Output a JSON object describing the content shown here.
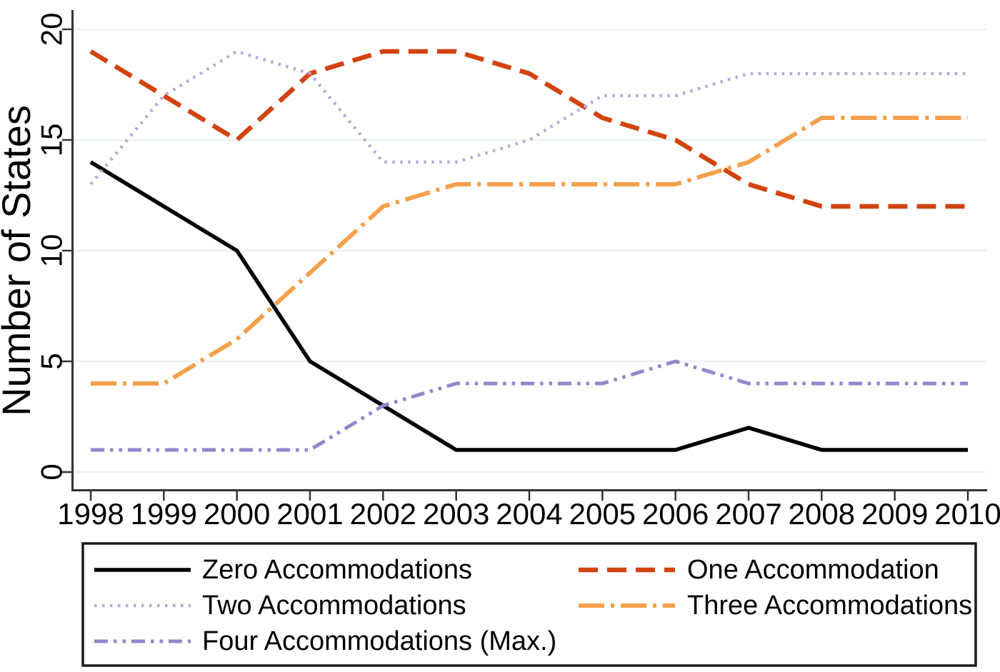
{
  "chart_data": {
    "type": "line",
    "title": "",
    "xlabel": "",
    "ylabel": "Number of States",
    "x_labels": [
      "1998",
      "1999",
      "2000",
      "2001",
      "2002",
      "2003",
      "2004",
      "2005",
      "2006",
      "2007",
      "2008",
      "2009",
      "2010"
    ],
    "yticks": [
      0,
      5,
      10,
      15,
      20
    ],
    "ylim": [
      0,
      20
    ],
    "grid": "horizontal",
    "gridline_color": "#eaf2f3",
    "axis_color": "#333333",
    "background_color": "#ffffff",
    "legend_position": "bottom",
    "series": [
      {
        "name": "Zero Accommodations",
        "color": "#000000",
        "line_style": "solid",
        "values": [
          14,
          12,
          10,
          5,
          3,
          1,
          1,
          1,
          1,
          2,
          1,
          1,
          1
        ]
      },
      {
        "name": "One Accommodation",
        "color": "#d2430e",
        "line_style": "dashed",
        "values": [
          19,
          17,
          15,
          18,
          19,
          19,
          18,
          16,
          15,
          13,
          12,
          12,
          12
        ]
      },
      {
        "name": "Two Accommodations",
        "color": "#b6acd8",
        "line_style": "dotted",
        "values": [
          13,
          17,
          19,
          18,
          14,
          14,
          15,
          17,
          17,
          18,
          18,
          18,
          18
        ]
      },
      {
        "name": "Three Accommodations",
        "color": "#f5a04c",
        "line_style": "dash-dot",
        "values": [
          4,
          4,
          6,
          9,
          12,
          13,
          13,
          13,
          13,
          14,
          16,
          16,
          16
        ]
      },
      {
        "name": "Four Accommodations (Max.)",
        "color": "#9287cb",
        "line_style": "dash-dot-dot",
        "values": [
          1,
          1,
          1,
          1,
          3,
          4,
          4,
          4,
          5,
          4,
          4,
          4,
          4
        ]
      }
    ],
    "legend": {
      "columns": [
        [
          "Zero Accommodations",
          "Two Accommodations",
          "Four Accommodations (Max.)"
        ],
        [
          "One Accommodation",
          "Three Accommodations"
        ]
      ]
    }
  }
}
